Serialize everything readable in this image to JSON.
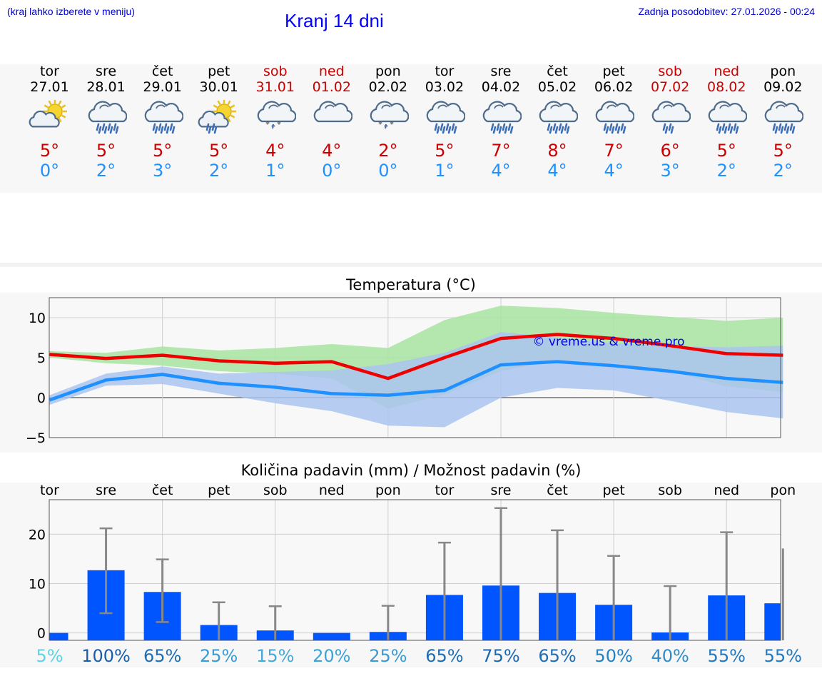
{
  "header": {
    "hint": "(kraj lahko izberete v meniju)",
    "title": "Kranj 14 dni",
    "updated": "Zadnja posodobitev: 27.01.2026 - 00:24"
  },
  "days": [
    {
      "wd": "tor",
      "date": "27.01",
      "weekend": false,
      "icon": "partly-sunny-icon",
      "tmax": "5°",
      "tmin": "0°"
    },
    {
      "wd": "sre",
      "date": "28.01",
      "weekend": false,
      "icon": "rain-cloud-icon",
      "tmax": "5°",
      "tmin": "2°"
    },
    {
      "wd": "čet",
      "date": "29.01",
      "weekend": false,
      "icon": "rain-cloud-icon",
      "tmax": "5°",
      "tmin": "3°"
    },
    {
      "wd": "pet",
      "date": "30.01",
      "weekend": false,
      "icon": "sun-rain-icon",
      "tmax": "5°",
      "tmin": "2°"
    },
    {
      "wd": "sob",
      "date": "31.01",
      "weekend": true,
      "icon": "snow-cloud-icon",
      "tmax": "4°",
      "tmin": "1°"
    },
    {
      "wd": "ned",
      "date": "01.02",
      "weekend": true,
      "icon": "cloud-icon",
      "tmax": "4°",
      "tmin": "0°"
    },
    {
      "wd": "pon",
      "date": "02.02",
      "weekend": false,
      "icon": "snow-cloud-icon",
      "tmax": "2°",
      "tmin": "0°"
    },
    {
      "wd": "tor",
      "date": "03.02",
      "weekend": false,
      "icon": "rain-cloud-icon",
      "tmax": "5°",
      "tmin": "1°"
    },
    {
      "wd": "sre",
      "date": "04.02",
      "weekend": false,
      "icon": "rain-cloud-icon",
      "tmax": "7°",
      "tmin": "4°"
    },
    {
      "wd": "čet",
      "date": "05.02",
      "weekend": false,
      "icon": "rain-cloud-icon",
      "tmax": "8°",
      "tmin": "4°"
    },
    {
      "wd": "pet",
      "date": "06.02",
      "weekend": false,
      "icon": "rain-cloud-icon",
      "tmax": "7°",
      "tmin": "4°"
    },
    {
      "wd": "sob",
      "date": "07.02",
      "weekend": true,
      "icon": "light-rain-cloud-icon",
      "tmax": "6°",
      "tmin": "3°"
    },
    {
      "wd": "ned",
      "date": "08.02",
      "weekend": true,
      "icon": "rain-cloud-icon",
      "tmax": "5°",
      "tmin": "2°"
    },
    {
      "wd": "pon",
      "date": "09.02",
      "weekend": false,
      "icon": "rain-cloud-icon",
      "tmax": "5°",
      "tmin": "2°"
    }
  ],
  "colors": {
    "weekend": "#cc0000",
    "tmax": "#cc0000",
    "tmin": "#1e90ff",
    "bar": "#0055ff"
  },
  "chart_data": [
    {
      "type": "line",
      "title": "Temperatura (°C)",
      "watermark": "© vreme.us & vreme.pro",
      "x": [
        0,
        1,
        2,
        3,
        4,
        5,
        6,
        7,
        8,
        9,
        10,
        11,
        12,
        13
      ],
      "ylim": [
        -5,
        12.5
      ],
      "yticks": [
        "10",
        "5",
        "0",
        "−5"
      ],
      "ytick_values": [
        10,
        5,
        0,
        -5
      ],
      "series": [
        {
          "name": "max",
          "color": "#ee0000",
          "values": [
            5.4,
            4.9,
            5.3,
            4.6,
            4.3,
            4.5,
            2.4,
            5.0,
            7.4,
            7.9,
            7.4,
            6.5,
            5.5,
            5.3
          ]
        },
        {
          "name": "min",
          "color": "#1e90ff",
          "values": [
            -0.3,
            2.2,
            2.9,
            1.8,
            1.3,
            0.5,
            0.3,
            0.9,
            4.1,
            4.5,
            4.0,
            3.3,
            2.4,
            1.9
          ]
        }
      ],
      "bands": [
        {
          "name": "max-range",
          "color": "#a8e4a0",
          "low": [
            5.0,
            4.3,
            4.0,
            3.3,
            3.0,
            2.4,
            -1.4,
            0.4,
            3.3,
            4.8,
            4.3,
            3.3,
            1.4,
            0.7
          ],
          "high": [
            5.8,
            5.6,
            6.4,
            5.9,
            6.2,
            6.7,
            6.2,
            9.7,
            11.5,
            11.2,
            10.6,
            10.1,
            9.6,
            10.0
          ]
        },
        {
          "name": "min-range",
          "color": "#aac4f0",
          "low": [
            -0.9,
            1.5,
            1.7,
            0.5,
            -0.7,
            -1.7,
            -3.5,
            -3.7,
            0.0,
            1.2,
            0.9,
            -0.4,
            -1.8,
            -2.6
          ],
          "high": [
            0.3,
            3.0,
            3.9,
            3.0,
            3.2,
            3.4,
            4.2,
            5.6,
            8.2,
            7.5,
            6.8,
            6.4,
            6.3,
            6.5
          ]
        }
      ]
    },
    {
      "type": "bar",
      "title": "Količina padavin (mm) / Možnost padavin (%)",
      "categories": [
        "tor",
        "sre",
        "čet",
        "pet",
        "sob",
        "ned",
        "pon",
        "tor",
        "sre",
        "čet",
        "pet",
        "sob",
        "ned",
        "pon"
      ],
      "ylim": [
        -1.5,
        27
      ],
      "yticks": [
        "20",
        "10",
        "0"
      ],
      "ytick_values": [
        20,
        10,
        0
      ],
      "values": [
        0,
        12.7,
        8.3,
        1.6,
        0.5,
        0,
        0.2,
        7.7,
        9.6,
        8.1,
        5.7,
        0.1,
        7.6,
        6.0
      ],
      "error_low": [
        null,
        4.0,
        2.2,
        null,
        null,
        null,
        null,
        null,
        null,
        null,
        null,
        null,
        null,
        null
      ],
      "error_high": [
        null,
        21.2,
        14.9,
        6.2,
        5.4,
        null,
        5.5,
        18.3,
        25.3,
        20.8,
        15.6,
        9.5,
        20.4,
        17.1
      ],
      "probabilities": [
        {
          "label": "5%",
          "color": "#5fd3e6"
        },
        {
          "label": "100%",
          "color": "#1a5ea8"
        },
        {
          "label": "65%",
          "color": "#1d6db5"
        },
        {
          "label": "25%",
          "color": "#3a9bd2"
        },
        {
          "label": "15%",
          "color": "#45a9d8"
        },
        {
          "label": "20%",
          "color": "#3ea2d5"
        },
        {
          "label": "25%",
          "color": "#3a9bd2"
        },
        {
          "label": "65%",
          "color": "#1d6db5"
        },
        {
          "label": "75%",
          "color": "#1b67b0"
        },
        {
          "label": "65%",
          "color": "#1d6db5"
        },
        {
          "label": "50%",
          "color": "#2580c2"
        },
        {
          "label": "40%",
          "color": "#2d8cc9"
        },
        {
          "label": "55%",
          "color": "#2278bd"
        },
        {
          "label": "55%",
          "color": "#2278bd"
        }
      ]
    }
  ]
}
